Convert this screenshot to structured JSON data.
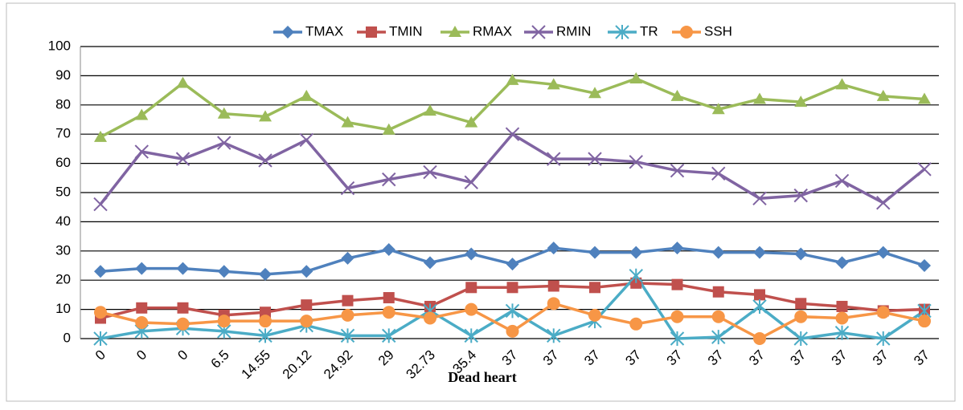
{
  "chart_data": {
    "type": "line",
    "x_label": "Dead heart",
    "categories": [
      "0",
      "0",
      "0",
      "6.5",
      "14.55",
      "20.12",
      "24.92",
      "29",
      "32.73",
      "35.4",
      "37",
      "37",
      "37",
      "37",
      "37",
      "37",
      "37",
      "37",
      "37",
      "37",
      "37"
    ],
    "series": [
      {
        "name": "TMAX",
        "color": "#4f81bd",
        "marker": "diamond",
        "values": [
          23,
          24,
          24,
          23,
          22,
          23,
          27.5,
          30.5,
          26,
          29,
          25.5,
          31,
          29.5,
          29.5,
          31,
          29.5,
          29.5,
          29,
          26,
          29.5,
          25
        ]
      },
      {
        "name": "TMIN",
        "color": "#c0504d",
        "marker": "square",
        "values": [
          7,
          10.5,
          10.5,
          8,
          9,
          11.5,
          13,
          14,
          11,
          17.5,
          17.5,
          18,
          17.5,
          19,
          18.5,
          16,
          15,
          12,
          11,
          9.5,
          10
        ]
      },
      {
        "name": "RMAX",
        "color": "#9bbb59",
        "marker": "triangle",
        "values": [
          69,
          76.5,
          87.5,
          77,
          76,
          83,
          74,
          71.5,
          78,
          74,
          88.5,
          87,
          84,
          89,
          83,
          78.5,
          82,
          81,
          87,
          83,
          82
        ]
      },
      {
        "name": "RMIN",
        "color": "#8064a2",
        "marker": "x",
        "values": [
          46,
          64,
          61.5,
          67,
          61,
          68,
          51.5,
          54.5,
          57,
          53.5,
          70,
          61.5,
          61.5,
          60.5,
          57.5,
          56.5,
          48,
          49,
          54,
          46.5,
          58
        ]
      },
      {
        "name": "TR",
        "color": "#4bacc6",
        "marker": "star",
        "values": [
          0,
          2.5,
          3.5,
          2.5,
          1,
          4.5,
          1,
          1,
          9.5,
          1,
          9.5,
          1,
          6,
          21.5,
          0,
          0.5,
          11,
          0,
          2,
          0,
          9.5
        ]
      },
      {
        "name": "SSH",
        "color": "#f79646",
        "marker": "circle",
        "values": [
          9,
          5.5,
          5,
          6,
          6,
          6,
          8,
          9,
          7,
          10,
          2.5,
          12,
          8,
          5,
          7.5,
          7.5,
          0,
          7.5,
          7,
          9,
          6
        ]
      }
    ],
    "ylim": [
      0,
      100
    ],
    "yticks": [
      0,
      10,
      20,
      30,
      40,
      50,
      60,
      70,
      80,
      90,
      100
    ],
    "grid": true,
    "legend": "top"
  }
}
